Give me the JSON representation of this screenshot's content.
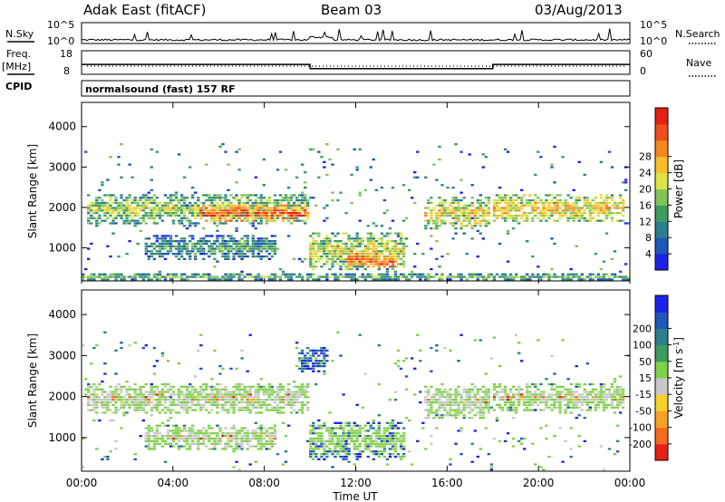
{
  "header": {
    "station": "Adak East (fitACF)",
    "beam": "Beam 03",
    "date": "03/Aug/2013"
  },
  "status_panel": {
    "n_sky_label": "N.Sky",
    "n_search_label": "N.Search",
    "freq_label": "Freq.",
    "freq_unit": "[MHz]",
    "nave_label": "Nave",
    "cpid_label": "CPID",
    "cpid_text": "normalsound (fast) 157 RF",
    "noise_ticks": [
      "10^5",
      "10^0"
    ],
    "freq_ticks": [
      "18",
      "8"
    ],
    "nave_ticks": [
      "60",
      "0"
    ],
    "freq_trace": [
      {
        "t": 0.0,
        "freq": 12.2
      },
      {
        "t": 10.0,
        "freq": 12.2
      },
      {
        "t": 10.0,
        "freq": 10.4
      },
      {
        "t": 18.0,
        "freq": 10.4
      },
      {
        "t": 18.0,
        "freq": 12.2
      },
      {
        "t": 24.0,
        "freq": 12.2
      }
    ]
  },
  "chart_data": [
    {
      "type": "heatmap",
      "name": "Power",
      "xlabel": "Time UT",
      "ylabel": "Slant Range [km]",
      "xlim": [
        0,
        24
      ],
      "ylim": [
        180,
        4600
      ],
      "x_ticks": [
        "00:00",
        "04:00",
        "08:00",
        "12:00",
        "16:00",
        "20:00",
        "00:00"
      ],
      "y_ticks": [
        "1000",
        "2000",
        "3000",
        "4000"
      ],
      "y_tick_values": [
        1000,
        2000,
        3000,
        4000
      ],
      "colorbar": {
        "label": "Power [dB]",
        "ticks": [
          "4",
          "8",
          "12",
          "16",
          "20",
          "24",
          "28"
        ],
        "colors": [
          "#1e22e8",
          "#1f56b7",
          "#2c7e8f",
          "#3e9b5f",
          "#80c45a",
          "#dce445",
          "#f8be2a",
          "#f6871e",
          "#ef4f1b",
          "#e81f17"
        ]
      },
      "bands": [
        {
          "t0": 0.3,
          "t1": 10.0,
          "r0": 1550,
          "r1": 2350,
          "level": 0.5
        },
        {
          "t0": 5.2,
          "t1": 9.9,
          "r0": 1650,
          "r1": 2050,
          "level": 0.85
        },
        {
          "t0": 10.0,
          "t1": 14.2,
          "r0": 450,
          "r1": 1400,
          "level": 0.55
        },
        {
          "t0": 11.5,
          "t1": 13.8,
          "r0": 500,
          "r1": 900,
          "level": 0.85
        },
        {
          "t0": 15.0,
          "t1": 17.9,
          "r0": 1450,
          "r1": 2250,
          "level": 0.6
        },
        {
          "t0": 18.0,
          "t1": 23.8,
          "r0": 1650,
          "r1": 2300,
          "level": 0.65
        },
        {
          "t0": 2.8,
          "t1": 8.5,
          "r0": 700,
          "r1": 1300,
          "level": 0.35
        },
        {
          "t0": 0.0,
          "t1": 24.0,
          "r0": 180,
          "r1": 380,
          "level": 0.4
        }
      ]
    },
    {
      "type": "heatmap",
      "name": "Velocity",
      "xlabel": "Time UT",
      "ylabel": "Slant Range [km]",
      "xlim": [
        0,
        24
      ],
      "ylim": [
        180,
        4600
      ],
      "x_ticks": [
        "00:00",
        "04:00",
        "08:00",
        "12:00",
        "16:00",
        "20:00",
        "00:00"
      ],
      "y_ticks": [
        "1000",
        "2000",
        "3000",
        "4000"
      ],
      "y_tick_values": [
        1000,
        2000,
        3000,
        4000
      ],
      "colorbar": {
        "label": "Velocity [m s",
        "label_sup": "-1",
        "label_end": "]",
        "ticks": [
          "200",
          "100",
          "50",
          "15",
          "-15",
          "-50",
          "-100",
          "-200"
        ],
        "colors": [
          "#1e22e8",
          "#1f56b7",
          "#2c7e8f",
          "#3e9b5f",
          "#80d04a",
          "#c8c8c8",
          "#f6d22a",
          "#f8a225",
          "#f46a1e",
          "#e81f17"
        ]
      },
      "bands": [
        {
          "t0": 0.3,
          "t1": 10.0,
          "r0": 1550,
          "r1": 2350,
          "level": 0.5
        },
        {
          "t0": 10.0,
          "t1": 14.2,
          "r0": 450,
          "r1": 1400,
          "level": 0.35
        },
        {
          "t0": 15.0,
          "t1": 17.9,
          "r0": 1450,
          "r1": 2250,
          "level": 0.5
        },
        {
          "t0": 18.0,
          "t1": 23.8,
          "r0": 1650,
          "r1": 2300,
          "level": 0.5
        },
        {
          "t0": 2.8,
          "t1": 8.5,
          "r0": 700,
          "r1": 1300,
          "level": 0.5
        },
        {
          "t0": 9.5,
          "t1": 10.8,
          "r0": 2600,
          "r1": 3200,
          "level": 0.12
        }
      ]
    }
  ]
}
